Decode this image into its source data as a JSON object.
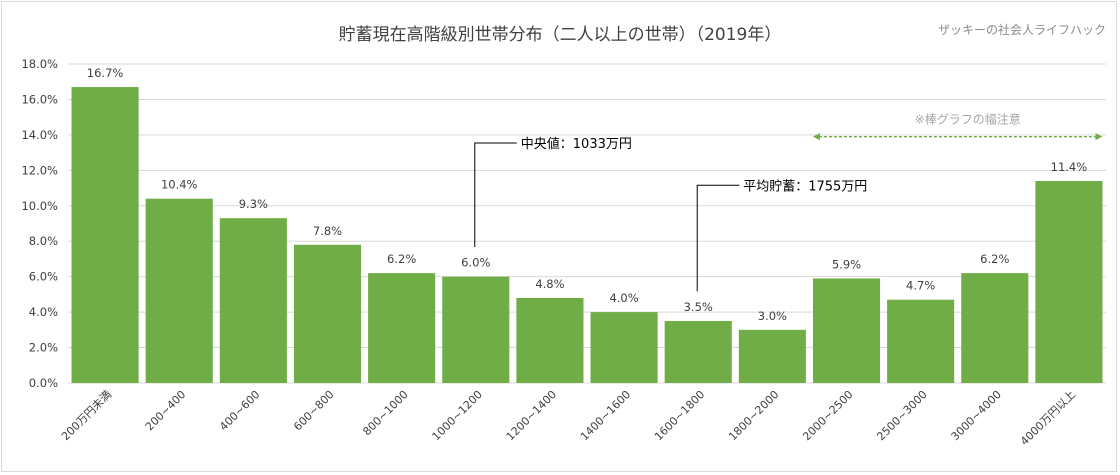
{
  "chart_data": {
    "type": "bar",
    "title": "貯蓄現在高階級別世帯分布（二人以上の世帯）（2019年）",
    "watermark": "ザッキーの社会人ライフハック",
    "categories": [
      "200万円未満",
      "200~400",
      "400~600",
      "600~800",
      "800~1000",
      "1000~1200",
      "1200~1400",
      "1400~1600",
      "1600~1800",
      "1800~2000",
      "2000~2500",
      "2500~3000",
      "3000~4000",
      "4000万円以上"
    ],
    "values": [
      16.7,
      10.4,
      9.3,
      7.8,
      6.2,
      6.0,
      4.8,
      4.0,
      3.5,
      3.0,
      5.9,
      4.7,
      6.2,
      11.4
    ],
    "data_labels": [
      "16.7%",
      "10.4%",
      "9.3%",
      "7.8%",
      "6.2%",
      "6.0%",
      "4.8%",
      "4.0%",
      "3.5%",
      "3.0%",
      "5.9%",
      "4.7%",
      "6.2%",
      "11.4%"
    ],
    "ylim": [
      0,
      18
    ],
    "yticks": [
      0,
      2,
      4,
      6,
      8,
      10,
      12,
      14,
      16,
      18
    ],
    "ytick_labels": [
      "0.0%",
      "2.0%",
      "4.0%",
      "6.0%",
      "8.0%",
      "10.0%",
      "12.0%",
      "14.0%",
      "16.0%",
      "18.0%"
    ],
    "grid": true,
    "bar_color": "#70ad47",
    "grid_color": "#d9d9d9",
    "annotations": [
      {
        "text": "中央値：1033万円",
        "category_index": 5,
        "level": 7.9
      },
      {
        "text": "平均貯蓄：1755万円",
        "category_index": 8,
        "level": 5.4
      }
    ],
    "bracket_note": {
      "text": "※棒グラフの幅注意",
      "from_category": 10,
      "to_category": 13,
      "color": "#70ad47"
    }
  }
}
